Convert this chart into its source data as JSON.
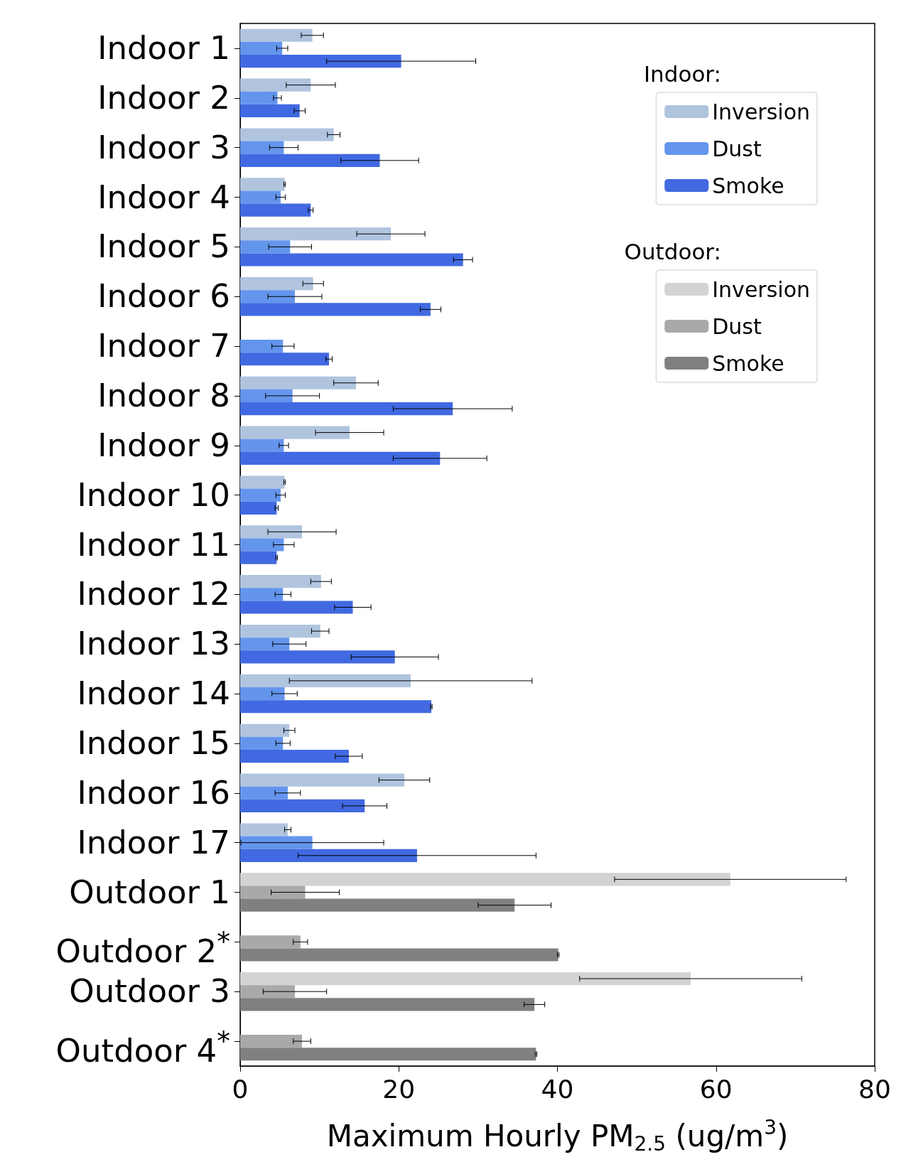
{
  "chart_data": {
    "type": "bar",
    "orientation": "horizontal",
    "xlabel": "Maximum Hourly PM$_{2.5}$ (ug/m$^{3}$)",
    "categories": [
      "Indoor 1",
      "Indoor 2",
      "Indoor 3",
      "Indoor 4",
      "Indoor 5",
      "Indoor 6",
      "Indoor 7",
      "Indoor 8",
      "Indoor 9",
      "Indoor 10",
      "Indoor 11",
      "Indoor 12",
      "Indoor 13",
      "Indoor 14",
      "Indoor 15",
      "Indoor 16",
      "Indoor 17",
      "Outdoor 1",
      "Outdoor 2$^{*}$",
      "Outdoor 3",
      "Outdoor 4$^{*}$"
    ],
    "series": [
      {
        "name": "Inversion",
        "color": "#b0c4de",
        "values": [
          9.1,
          8.9,
          11.8,
          5.6,
          19.0,
          9.2,
          null,
          14.6,
          13.8,
          5.6,
          7.8,
          10.2,
          10.1,
          21.5,
          6.2,
          20.7,
          6.0,
          null,
          null,
          null,
          null
        ],
        "errors": [
          1.4,
          3.1,
          0.8,
          0.1,
          4.3,
          1.3,
          null,
          2.8,
          4.3,
          0.1,
          4.3,
          1.3,
          1.1,
          15.3,
          0.7,
          3.2,
          0.4,
          null,
          null,
          null,
          null
        ]
      },
      {
        "name": "Dust",
        "color": "#6495ed",
        "values": [
          5.3,
          4.7,
          5.5,
          5.1,
          6.3,
          6.9,
          5.4,
          6.6,
          5.5,
          5.1,
          5.5,
          5.4,
          6.2,
          5.6,
          5.4,
          6.0,
          9.1,
          null,
          null,
          null,
          null
        ],
        "errors": [
          0.7,
          0.5,
          1.8,
          0.6,
          2.7,
          3.4,
          1.4,
          3.4,
          0.6,
          0.6,
          1.3,
          1.0,
          2.1,
          1.6,
          0.9,
          1.6,
          9.0,
          null,
          null,
          null,
          null
        ]
      },
      {
        "name": "Smoke",
        "color": "#4169e1",
        "values": [
          20.3,
          7.5,
          17.6,
          8.9,
          28.1,
          24.0,
          11.2,
          26.8,
          25.2,
          4.6,
          4.6,
          14.2,
          19.5,
          24.1,
          13.7,
          15.7,
          22.3,
          null,
          null,
          null,
          null
        ],
        "errors": [
          9.4,
          0.7,
          4.9,
          0.3,
          1.2,
          1.3,
          0.4,
          7.5,
          5.9,
          0.2,
          0.1,
          2.3,
          5.5,
          0.1,
          1.7,
          2.8,
          15.0,
          null,
          null,
          null,
          null
        ]
      },
      {
        "name": "Inversion",
        "color": "#d3d3d3",
        "values": [
          null,
          null,
          null,
          null,
          null,
          null,
          null,
          null,
          null,
          null,
          null,
          null,
          null,
          null,
          null,
          null,
          null,
          61.8,
          null,
          56.8,
          null
        ],
        "errors": [
          null,
          null,
          null,
          null,
          null,
          null,
          null,
          null,
          null,
          null,
          null,
          null,
          null,
          null,
          null,
          null,
          null,
          14.6,
          null,
          14.0,
          null
        ]
      },
      {
        "name": "Dust",
        "color": "#a9a9a9",
        "values": [
          null,
          null,
          null,
          null,
          null,
          null,
          null,
          null,
          null,
          null,
          null,
          null,
          null,
          null,
          null,
          null,
          null,
          8.2,
          7.6,
          6.9,
          7.8
        ],
        "errors": [
          null,
          null,
          null,
          null,
          null,
          null,
          null,
          null,
          null,
          null,
          null,
          null,
          null,
          null,
          null,
          null,
          null,
          4.3,
          0.9,
          4.0,
          1.1
        ]
      },
      {
        "name": "Smoke",
        "color": "#808080",
        "values": [
          null,
          null,
          null,
          null,
          null,
          null,
          null,
          null,
          null,
          null,
          null,
          null,
          null,
          null,
          null,
          null,
          null,
          34.6,
          40.1,
          37.1,
          37.3
        ],
        "errors": [
          null,
          null,
          null,
          null,
          null,
          null,
          null,
          null,
          null,
          null,
          null,
          null,
          null,
          null,
          null,
          null,
          null,
          4.6,
          0.1,
          1.3,
          0.1
        ]
      }
    ],
    "xlim": [
      0,
      80
    ],
    "xticks": [
      0,
      20,
      40,
      60,
      80
    ],
    "grid": false,
    "legend": "top right",
    "annotations": [
      "Indoor:",
      "Outdoor:"
    ]
  }
}
